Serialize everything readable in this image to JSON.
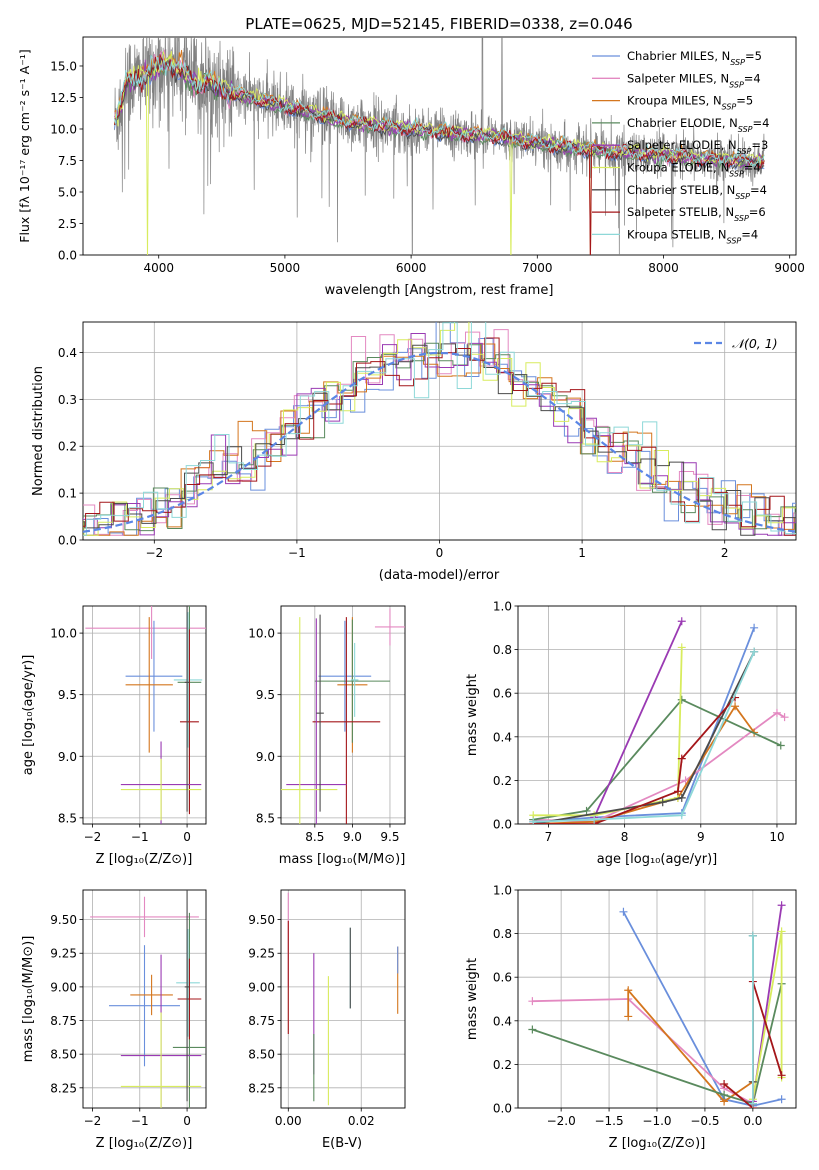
{
  "colors": [
    "#6a8fdc",
    "#e389c1",
    "#d4761e",
    "#5a8a5e",
    "#9a3ab3",
    "#d8ec5e",
    "#4b4b4b",
    "#a4161a",
    "#8ed8d8"
  ],
  "spectrum_gray": "#808080",
  "gauss_color": "#5b86e5",
  "chart_data": [
    {
      "id": "spectrum",
      "type": "line",
      "title": "PLATE=0625, MJD=52145, FIBERID=0338, z=0.046",
      "xlabel": "wavelength [Angstrom, rest frame]",
      "ylabel": "Flux [fλ 10⁻¹⁷ erg cm⁻² s⁻¹ A⁻¹]",
      "xlim": [
        3400,
        9050
      ],
      "ylim": [
        0,
        17.3
      ],
      "xticks": [
        4000,
        5000,
        6000,
        7000,
        8000,
        9000
      ],
      "yticks": [
        0.0,
        2.5,
        5.0,
        7.5,
        10.0,
        12.5,
        15.0
      ],
      "xticklabels": [
        "4000",
        "5000",
        "6000",
        "7000",
        "8000",
        "9000"
      ],
      "yticklabels": [
        "0.0",
        "2.5",
        "5.0",
        "7.5",
        "10.0",
        "12.5",
        "15.0"
      ],
      "legend_position": "upper-right",
      "legend": [
        "Chabrier MILES, N_SSP=5",
        "Salpeter MILES, N_SSP=4",
        "Kroupa MILES, N_SSP=5",
        "Chabrier ELODIE, N_SSP=4",
        "Salpeter ELODIE, N_SSP=3",
        "Kroupa ELODIE, N_SSP=4",
        "Chabrier STELIB, N_SSP=4",
        "Salpeter STELIB, N_SSP=6",
        "Kroupa STELIB, N_SSP=4"
      ],
      "series_x": [
        3650,
        3700,
        3750,
        3800,
        3900,
        4000,
        4100,
        4200,
        4300,
        4400,
        4500,
        4600,
        4800,
        5000,
        5200,
        5400,
        5600,
        5800,
        6000,
        6200,
        6400,
        6600,
        6800,
        7000,
        7200,
        7400,
        7600,
        7800,
        8000,
        8200,
        8400,
        8600,
        8800
      ],
      "series_y": [
        10.5,
        12.0,
        14.0,
        13.8,
        14.3,
        15.0,
        15.2,
        14.5,
        13.4,
        13.8,
        13.0,
        12.8,
        12.3,
        11.8,
        11.3,
        10.8,
        10.4,
        10.2,
        10.0,
        9.8,
        9.6,
        9.5,
        9.2,
        8.9,
        8.6,
        8.4,
        8.2,
        8.0,
        7.9,
        7.7,
        7.6,
        7.5,
        7.4
      ],
      "dropouts": [
        {
          "series": 5,
          "x": 3910
        },
        {
          "series": 5,
          "x": 6790
        },
        {
          "series": 2,
          "x": 7420
        },
        {
          "series": 7,
          "x": 7420
        }
      ],
      "data_x_range": [
        3650,
        8800
      ]
    },
    {
      "id": "residual-hist",
      "type": "histogram",
      "xlabel": "(data-model)/error",
      "ylabel": "Normed distribution",
      "xlim": [
        -2.5,
        2.5
      ],
      "ylim": [
        0,
        0.465
      ],
      "xticks": [
        -2,
        -1,
        0,
        1,
        2
      ],
      "yticks": [
        0.0,
        0.1,
        0.2,
        0.3,
        0.4
      ],
      "xticklabels": [
        "−2",
        "−1",
        "0",
        "1",
        "2"
      ],
      "yticklabels": [
        "0.0",
        "0.1",
        "0.2",
        "0.3",
        "0.4"
      ],
      "bin_width": 0.1,
      "legend": [
        "𝒩(0, 1)"
      ],
      "legend_position": "upper-right",
      "gaussian": {
        "mean": 0,
        "sigma": 1
      }
    },
    {
      "id": "age-vs-Z",
      "type": "errorbar",
      "xlabel": "Z [log₁₀(Z/Z⊙)]",
      "ylabel": "age  [log₁₀(age/yr)]",
      "xlim": [
        -2.2,
        0.4
      ],
      "ylim": [
        8.45,
        10.22
      ],
      "xticks": [
        -2,
        -1,
        0
      ],
      "xticklabels": [
        "−2",
        "−1",
        "0"
      ],
      "yticks": [
        8.5,
        9.0,
        9.5,
        10.0
      ],
      "yticklabels": [
        "8.5",
        "9.0",
        "9.5",
        "10.0"
      ],
      "points": [
        {
          "s": 1,
          "x": -0.75,
          "xerr": 1.4,
          "y": 10.04,
          "yerr": 0.25
        },
        {
          "s": 0,
          "x": -0.7,
          "xerr": 0.6,
          "y": 9.65,
          "yerr": 0.45
        },
        {
          "s": 2,
          "x": -0.8,
          "xerr": 0.5,
          "y": 9.58,
          "yerr": 0.55
        },
        {
          "s": 3,
          "x": 0.05,
          "xerr": 0.25,
          "y": 9.6,
          "yerr": 1.05
        },
        {
          "s": 8,
          "x": 0.02,
          "xerr": 0.3,
          "y": 9.62,
          "yerr": 0.55
        },
        {
          "s": 7,
          "x": 0.05,
          "xerr": 0.2,
          "y": 9.28,
          "yerr": 0.75
        },
        {
          "s": 4,
          "x": -0.55,
          "xerr": 0.85,
          "y": 8.77,
          "yerr": 0.35
        },
        {
          "s": 5,
          "x": -0.55,
          "xerr": 0.85,
          "y": 8.73,
          "yerr": 0.25
        },
        {
          "s": 6,
          "x": 0.0,
          "xerr": 0.05,
          "y": 9.6,
          "yerr": 1.05
        }
      ]
    },
    {
      "id": "age-vs-mass",
      "type": "errorbar",
      "xlabel": "mass [log₁₀(M/M⊙)]",
      "ylabel": "",
      "xlim": [
        8.05,
        9.7
      ],
      "ylim": [
        8.45,
        10.22
      ],
      "xticks": [
        8.5,
        9.0,
        9.5
      ],
      "xticklabels": [
        "8.5",
        "9.0",
        "9.5"
      ],
      "yticks": [
        8.5,
        9.0,
        9.5,
        10.0
      ],
      "yticklabels": [
        "8.5",
        "9.0",
        "9.5",
        "10.0"
      ],
      "points": [
        {
          "s": 1,
          "x": 9.5,
          "xerr": 0.2,
          "y": 10.05,
          "yerr": 0.15
        },
        {
          "s": 0,
          "x": 8.9,
          "xerr": 0.35,
          "y": 9.65,
          "yerr": 0.45
        },
        {
          "s": 2,
          "x": 9.0,
          "xerr": 0.2,
          "y": 9.58,
          "yerr": 0.55
        },
        {
          "s": 3,
          "x": 9.0,
          "xerr": 0.5,
          "y": 9.61,
          "yerr": 0.5
        },
        {
          "s": 8,
          "x": 9.03,
          "xerr": 0.05,
          "y": 9.62,
          "yerr": 0.3
        },
        {
          "s": 7,
          "x": 8.92,
          "xerr": 0.45,
          "y": 9.28,
          "yerr": 0.85
        },
        {
          "s": 4,
          "x": 8.52,
          "xerr": 0.4,
          "y": 8.77,
          "yerr": 1.35
        },
        {
          "s": 5,
          "x": 8.3,
          "xerr": 0.5,
          "y": 8.73,
          "yerr": 1.4
        },
        {
          "s": 6,
          "x": 8.57,
          "xerr": 0.05,
          "y": 9.35,
          "yerr": 0.8
        }
      ]
    },
    {
      "id": "massweight-vs-age",
      "type": "line",
      "xlabel": "age  [log₁₀(age/yr)]",
      "ylabel": "mass weight",
      "xlim": [
        6.6,
        10.25
      ],
      "ylim": [
        0,
        1.0
      ],
      "xticks": [
        7,
        8,
        9,
        10
      ],
      "xticklabels": [
        "7",
        "8",
        "9",
        "10"
      ],
      "yticks": [
        0.0,
        0.2,
        0.4,
        0.6,
        0.8,
        1.0
      ],
      "yticklabels": [
        "0.0",
        "0.2",
        "0.4",
        "0.6",
        "0.8",
        "1.0"
      ],
      "grid": true,
      "series": [
        {
          "s": 0,
          "x": [
            6.8,
            7.6,
            8.75,
            9.7
          ],
          "y": [
            0.01,
            0.03,
            0.05,
            0.9
          ]
        },
        {
          "s": 1,
          "x": [
            6.8,
            7.6,
            8.8,
            10.0,
            10.1
          ],
          "y": [
            0.02,
            0.01,
            0.2,
            0.51,
            0.49
          ]
        },
        {
          "s": 2,
          "x": [
            6.8,
            7.6,
            8.7,
            9.45,
            9.7
          ],
          "y": [
            0.0,
            0.01,
            0.12,
            0.54,
            0.42
          ]
        },
        {
          "s": 3,
          "x": [
            6.8,
            7.5,
            8.75,
            10.05
          ],
          "y": [
            0.02,
            0.06,
            0.57,
            0.36
          ]
        },
        {
          "s": 4,
          "x": [
            7.6,
            8.75
          ],
          "y": [
            0.03,
            0.93
          ]
        },
        {
          "s": 5,
          "x": [
            6.8,
            7.6,
            8.7,
            8.75
          ],
          "y": [
            0.04,
            0.04,
            0.12,
            0.81
          ]
        },
        {
          "s": 6,
          "x": [
            6.8,
            8.5,
            8.75,
            9.7
          ],
          "y": [
            0.0,
            0.1,
            0.12,
            0.79
          ]
        },
        {
          "s": 7,
          "x": [
            6.8,
            7.6,
            8.7,
            8.75,
            9.45
          ],
          "y": [
            0.0,
            0.0,
            0.15,
            0.3,
            0.58
          ]
        },
        {
          "s": 8,
          "x": [
            6.8,
            7.6,
            8.75,
            9.7
          ],
          "y": [
            0.01,
            0.02,
            0.04,
            0.79
          ]
        }
      ]
    },
    {
      "id": "mass-vs-Z",
      "type": "errorbar",
      "xlabel": "Z [log₁₀(Z/Z⊙)]",
      "ylabel": "mass [log₁₀(M/M⊙)]",
      "xlim": [
        -2.2,
        0.4
      ],
      "ylim": [
        8.1,
        9.72
      ],
      "xticks": [
        -2,
        -1,
        0
      ],
      "xticklabels": [
        "−2",
        "−1",
        "0"
      ],
      "yticks": [
        8.25,
        8.5,
        8.75,
        9.0,
        9.25,
        9.5
      ],
      "yticklabels": [
        "8.25",
        "8.50",
        "8.75",
        "9.00",
        "9.25",
        "9.50"
      ],
      "points": [
        {
          "s": 1,
          "x": -0.9,
          "xerr": 1.15,
          "y": 9.52,
          "yerr": 0.15
        },
        {
          "s": 0,
          "x": -0.9,
          "xerr": 0.75,
          "y": 8.86,
          "yerr": 0.45
        },
        {
          "s": 2,
          "x": -0.75,
          "xerr": 0.45,
          "y": 8.94,
          "yerr": 0.15
        },
        {
          "s": 3,
          "x": 0.05,
          "xerr": 0.35,
          "y": 8.55,
          "yerr": 1.0
        },
        {
          "s": 8,
          "x": 0.02,
          "xerr": 0.25,
          "y": 9.03,
          "yerr": 0.4
        },
        {
          "s": 7,
          "x": 0.05,
          "xerr": 0.25,
          "y": 8.91,
          "yerr": 0.3
        },
        {
          "s": 4,
          "x": -0.55,
          "xerr": 0.85,
          "y": 8.49,
          "yerr": 0.75
        },
        {
          "s": 5,
          "x": -0.55,
          "xerr": 0.85,
          "y": 8.26,
          "yerr": 0.55
        },
        {
          "s": 6,
          "x": 0.0,
          "xerr": 0.05,
          "y": 9.0,
          "yerr": 0.85
        }
      ]
    },
    {
      "id": "mass-vs-EBV",
      "type": "errorbar",
      "xlabel": "E(B-V)",
      "ylabel": "",
      "xlim": [
        -0.002,
        0.032
      ],
      "ylim": [
        8.1,
        9.72
      ],
      "xticks": [
        0.0,
        0.02
      ],
      "xticklabels": [
        "0.00",
        "0.02"
      ],
      "yticks": [
        8.25,
        8.5,
        8.75,
        9.0,
        9.25,
        9.5
      ],
      "yticklabels": [
        "8.25",
        "8.50",
        "8.75",
        "9.00",
        "9.25",
        "9.50"
      ],
      "points": [
        {
          "s": 1,
          "x": 0.0,
          "xerr": 0,
          "y": 9.35,
          "yerr": 0.35
        },
        {
          "s": 7,
          "x": 0.0,
          "xerr": 0,
          "y": 9.07,
          "yerr": 0.42
        },
        {
          "s": 4,
          "x": 0.007,
          "xerr": 0,
          "y": 8.8,
          "yerr": 0.45
        },
        {
          "s": 3,
          "x": 0.007,
          "xerr": 0,
          "y": 8.4,
          "yerr": 0.25
        },
        {
          "s": 5,
          "x": 0.011,
          "xerr": 0,
          "y": 8.6,
          "yerr": 0.48
        },
        {
          "s": 8,
          "x": 0.017,
          "xerr": 0,
          "y": 9.14,
          "yerr": 0.3
        },
        {
          "s": 6,
          "x": 0.017,
          "xerr": 0,
          "y": 9.14,
          "yerr": 0.3
        },
        {
          "s": 2,
          "x": 0.03,
          "xerr": 0,
          "y": 9.05,
          "yerr": 0.25
        },
        {
          "s": 0,
          "x": 0.03,
          "xerr": 0,
          "y": 9.2,
          "yerr": 0.1
        }
      ]
    },
    {
      "id": "massweight-vs-Z",
      "type": "line",
      "xlabel": "Z [log₁₀(Z/Z⊙)]",
      "ylabel": "mass weight",
      "xlim": [
        -2.45,
        0.45
      ],
      "ylim": [
        0,
        1.0
      ],
      "xticks": [
        -2.0,
        -1.5,
        -1.0,
        -0.5,
        0.0
      ],
      "xticklabels": [
        "−2.0",
        "−1.5",
        "−1.0",
        "−0.5",
        "0.0"
      ],
      "yticks": [
        0.0,
        0.2,
        0.4,
        0.6,
        0.8,
        1.0
      ],
      "yticklabels": [
        "0.0",
        "0.2",
        "0.4",
        "0.6",
        "0.8",
        "1.0"
      ],
      "grid": true,
      "series": [
        {
          "s": 0,
          "x": [
            -1.35,
            -0.3,
            0.0,
            0.3
          ],
          "y": [
            0.9,
            0.04,
            0.01,
            0.04
          ]
        },
        {
          "s": 1,
          "x": [
            -2.3,
            -1.3,
            -0.3,
            0.0
          ],
          "y": [
            0.49,
            0.5,
            0.09,
            0.02
          ]
        },
        {
          "s": 2,
          "x": [
            -1.3,
            -1.3,
            -0.3,
            0.0
          ],
          "y": [
            0.42,
            0.54,
            0.03,
            0.12
          ]
        },
        {
          "s": 3,
          "x": [
            -2.3,
            -0.3,
            0.0,
            0.3
          ],
          "y": [
            0.36,
            0.06,
            0.02,
            0.57
          ]
        },
        {
          "s": 4,
          "x": [
            0.0,
            0.3
          ],
          "y": [
            0.03,
            0.93
          ]
        },
        {
          "s": 5,
          "x": [
            0.0,
            0.3,
            0.3
          ],
          "y": [
            0.04,
            0.81,
            0.14
          ]
        },
        {
          "s": 6,
          "x": [
            0.0,
            0.0
          ],
          "y": [
            0.12,
            0.79
          ]
        },
        {
          "s": 7,
          "x": [
            -0.3,
            0.0,
            0.0,
            0.3
          ],
          "y": [
            0.11,
            0.0,
            0.58,
            0.15
          ]
        },
        {
          "s": 8,
          "x": [
            0.0,
            0.0
          ],
          "y": [
            0.02,
            0.79
          ]
        }
      ]
    }
  ]
}
